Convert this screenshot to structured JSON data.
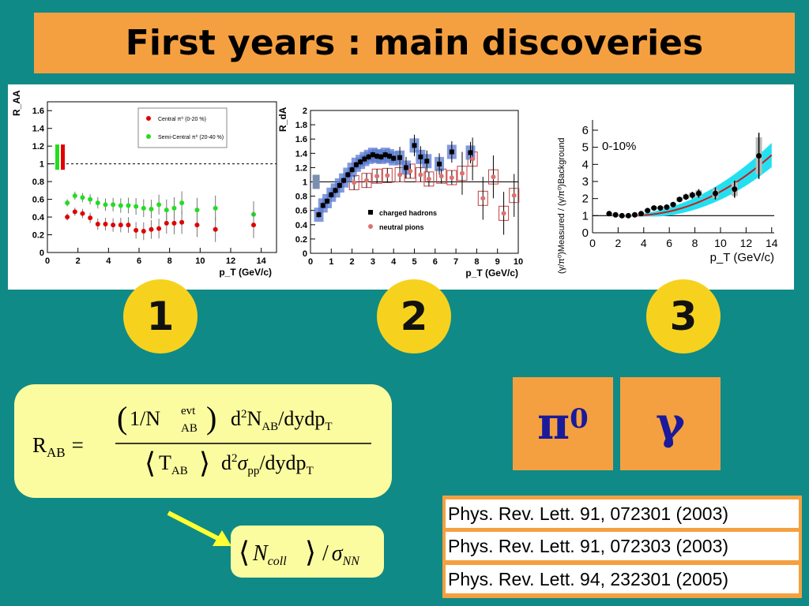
{
  "title": "First years : main discoveries",
  "badges": [
    "1",
    "2",
    "3"
  ],
  "plot1": {
    "ylabel": "R_AA",
    "xlabel": "p_T (GeV/c)",
    "legend": [
      "Central π⁰ (0-20 %)",
      "Semi-Central π⁰ (20-40 %)"
    ],
    "yticks": [
      "0",
      "0.2",
      "0.4",
      "0.6",
      "0.8",
      "1",
      "1.2",
      "1.4",
      "1.6"
    ],
    "xticks": [
      "0",
      "2",
      "4",
      "6",
      "8",
      "10",
      "12",
      "14"
    ],
    "colors": {
      "central": "#e00000",
      "semi": "#22dd22"
    }
  },
  "plot2": {
    "ylabel": "R_dA",
    "xlabel": "p_T (GeV/c)",
    "legend": [
      "charged hadrons",
      "neutral pions"
    ],
    "yticks": [
      "0",
      "0.2",
      "0.4",
      "0.6",
      "0.8",
      "1",
      "1.2",
      "1.4",
      "1.6",
      "1.8",
      "2"
    ],
    "xticks": [
      "0",
      "1",
      "2",
      "3",
      "4",
      "5",
      "6",
      "7",
      "8",
      "9",
      "10"
    ]
  },
  "plot3": {
    "ylabel": "(γ/π⁰)Measured / (γ/π⁰)Background",
    "xlabel": "p_T (GeV/c)",
    "annotation": "0-10%",
    "yticks": [
      "0",
      "1",
      "2",
      "3",
      "4",
      "5",
      "6"
    ],
    "xticks": [
      "0",
      "2",
      "4",
      "6",
      "8",
      "10",
      "12",
      "14"
    ]
  },
  "formula": {
    "lhs": "R",
    "lhs_sub": "AB",
    "eq": "=",
    "num_pre": "1/N",
    "num_sup": "evt",
    "num_sub": "AB",
    "num_d2": "d",
    "num_two": "2",
    "num_N": "N",
    "num_Nsub": "AB",
    "num_rest": "/dydp",
    "num_T": "T",
    "den_T": "T",
    "den_Tsub": "AB",
    "den_d": "d",
    "den_two": "2",
    "den_sigma": "σ",
    "den_sigsub": "pp",
    "den_rest": "/dydp",
    "den_Tt": "T"
  },
  "ncoll": {
    "N": "N",
    "sub": "coll",
    "slash": "/",
    "sigma": "σ",
    "sigsub": "NN"
  },
  "particles": {
    "pi0_base": "π",
    "pi0_sup": "0",
    "gamma": "γ"
  },
  "references": [
    "Phys. Rev. Lett. 91, 072301 (2003)",
    "Phys. Rev. Lett. 91, 072303 (2003)",
    "Phys. Rev. Lett. 94, 232301 (2005)"
  ]
}
